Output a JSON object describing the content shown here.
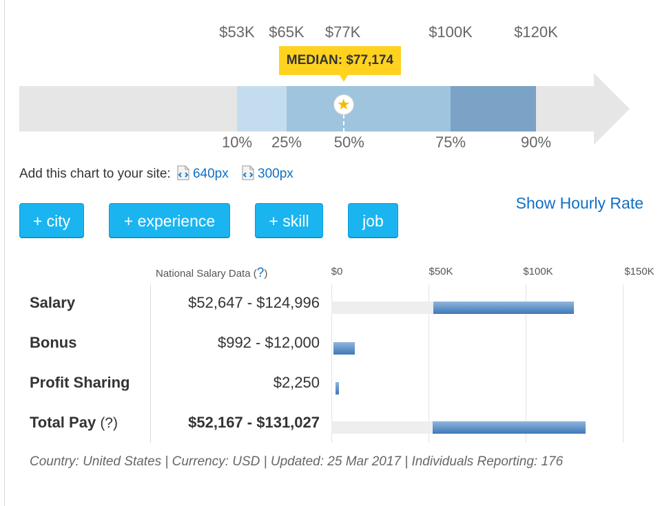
{
  "chart_data": [
    {
      "type": "bar",
      "title": "",
      "top_ticks": [
        "$53K",
        "$65K",
        "$77K",
        "$100K",
        "$120K"
      ],
      "top_tick_values": [
        53000,
        65000,
        77000,
        100000,
        120000
      ],
      "percentile_labels": [
        "10%",
        "25%",
        "50%",
        "75%",
        "90%"
      ],
      "percentiles": {
        "p10": 53000,
        "p25": 65000,
        "p50": 77174,
        "p75": 100000,
        "p90": 120000
      },
      "median_label": "MEDIAN: $77,174",
      "median": 77174,
      "xlim": [
        0,
        150000
      ],
      "colors": {
        "p10_p25": "#c3ddef",
        "p25_p75": "#9fc4de",
        "p75_p90": "#7aa3c6",
        "track": "#e6e6e6",
        "median": "#ffd21f"
      }
    },
    {
      "type": "bar",
      "title": "",
      "axis_ticks": [
        "$0",
        "$50K",
        "$100K",
        "$150K"
      ],
      "axis_tick_values": [
        0,
        50000,
        100000,
        150000
      ],
      "xlim": [
        0,
        150000
      ],
      "grid": true,
      "categories": [
        "Salary",
        "Bonus",
        "Profit Sharing",
        "Total Pay"
      ],
      "ranges": [
        [
          52647,
          124996
        ],
        [
          992,
          12000
        ],
        [
          2250,
          2250
        ],
        [
          52167,
          131027
        ]
      ],
      "value_labels": [
        "$52,647 - $124,996",
        "$992 - $12,000",
        "$2,250",
        "$52,167 - $131,027"
      ]
    }
  ],
  "embed": {
    "label": "Add this chart to your site:",
    "link_640": "640px",
    "link_300": "300px"
  },
  "buttons": {
    "city": "+ city",
    "experience": "+ experience",
    "skill": "+ skill",
    "job": "job"
  },
  "hourly_link": "Show Hourly Rate",
  "table": {
    "column_header": "National Salary Data",
    "help_mark": "?",
    "total_pay_label": "Total Pay",
    "total_pay_help": "(?)"
  },
  "footer": "Country: United States | Currency: USD | Updated: 25 Mar 2017 | Individuals Reporting: 176",
  "colors": {
    "button": "#1ab5f0",
    "link": "#0f6fc6",
    "bar_fill": "#3f78b8"
  }
}
